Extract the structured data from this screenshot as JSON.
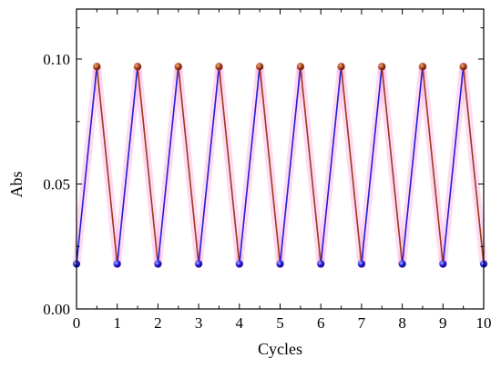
{
  "chart_data": {
    "type": "line",
    "xlabel": "Cycles",
    "ylabel": "Abs",
    "xlim": [
      0,
      10
    ],
    "ylim": [
      0.0,
      0.12
    ],
    "x_ticks": [
      0,
      1,
      2,
      3,
      4,
      5,
      6,
      7,
      8,
      9,
      10
    ],
    "x_tick_labels": [
      "0",
      "1",
      "2",
      "3",
      "4",
      "5",
      "6",
      "7",
      "8",
      "9",
      "10"
    ],
    "y_ticks": [
      0.0,
      0.05,
      0.1
    ],
    "y_tick_labels": [
      "0.00",
      "0.05",
      "0.10"
    ],
    "grid": false,
    "x": [
      0,
      0.5,
      1,
      1.5,
      2,
      2.5,
      3,
      3.5,
      4,
      4.5,
      5,
      5.5,
      6,
      6.5,
      7,
      7.5,
      8,
      8.5,
      9,
      9.5,
      10
    ],
    "y": [
      0.018,
      0.097,
      0.018,
      0.097,
      0.018,
      0.097,
      0.018,
      0.097,
      0.018,
      0.097,
      0.018,
      0.097,
      0.018,
      0.097,
      0.018,
      0.097,
      0.018,
      0.097,
      0.018,
      0.097,
      0.018
    ],
    "rising_color": "#1f1fd6",
    "falling_color": "#9a3a1a",
    "low_marker_color": "#2020e0",
    "high_marker_color": "#b04a1a",
    "highlight_color": "#ff99dd"
  }
}
